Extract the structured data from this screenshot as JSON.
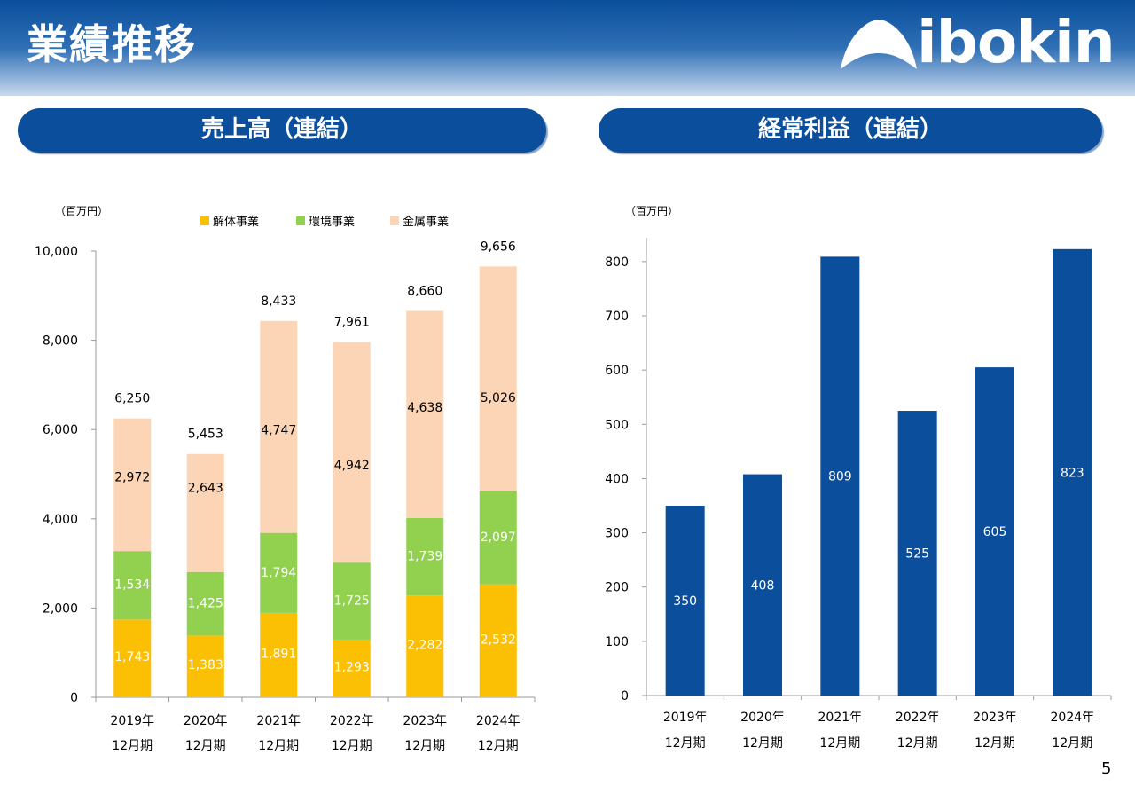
{
  "header": {
    "title": "業績推移",
    "logo_text": "ibokin"
  },
  "page_number": "5",
  "colors": {
    "brand_blue": "#0b4f9c",
    "demolition": "#fbbf04",
    "environment": "#92d050",
    "metal": "#fbd5b5"
  },
  "chart_data": [
    {
      "type": "bar",
      "stacked": true,
      "title": "売上高（連結）",
      "unit_label": "（百万円）",
      "categories": [
        "2019年\n12月期",
        "2020年\n12月期",
        "2021年\n12月期",
        "2022年\n12月期",
        "2023年\n12月期",
        "2024年\n12月期"
      ],
      "series": [
        {
          "name": "解体事業",
          "color": "#fbbf04",
          "values": [
            1743,
            1383,
            1891,
            1293,
            2282,
            2532
          ]
        },
        {
          "name": "環境事業",
          "color": "#92d050",
          "values": [
            1534,
            1425,
            1794,
            1725,
            1739,
            2097
          ]
        },
        {
          "name": "金属事業",
          "color": "#fbd5b5",
          "values": [
            2972,
            2643,
            4747,
            4942,
            4638,
            5026
          ]
        }
      ],
      "totals": [
        6250,
        5453,
        8433,
        7961,
        8660,
        9656
      ],
      "ylim": [
        0,
        10000
      ],
      "yticks": [
        0,
        2000,
        4000,
        6000,
        8000,
        10000
      ],
      "legend_position": "top",
      "grid": false
    },
    {
      "type": "bar",
      "title": "経常利益（連結）",
      "unit_label": "（百万円）",
      "categories": [
        "2019年\n12月期",
        "2020年\n12月期",
        "2021年\n12月期",
        "2022年\n12月期",
        "2023年\n12月期",
        "2024年\n12月期"
      ],
      "values": [
        350,
        408,
        809,
        525,
        605,
        823
      ],
      "color": "#0b4f9c",
      "ylim": [
        0,
        850
      ],
      "yticks": [
        0,
        100,
        200,
        300,
        400,
        500,
        600,
        700,
        800
      ],
      "grid": false
    }
  ]
}
